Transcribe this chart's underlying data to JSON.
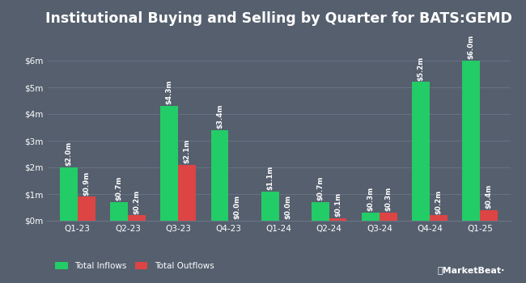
{
  "title": "Institutional Buying and Selling by Quarter for BATS:GEMD",
  "quarters": [
    "Q1-23",
    "Q2-23",
    "Q3-23",
    "Q4-23",
    "Q1-24",
    "Q2-24",
    "Q3-24",
    "Q4-24",
    "Q1-25"
  ],
  "inflows": [
    2.0,
    0.7,
    4.3,
    3.4,
    1.1,
    0.7,
    0.3,
    5.2,
    6.0
  ],
  "outflows": [
    0.9,
    0.2,
    2.1,
    0.0,
    0.0,
    0.1,
    0.3,
    0.2,
    0.4
  ],
  "inflow_labels": [
    "$2.0m",
    "$0.7m",
    "$4.3m",
    "$3.4m",
    "$1.1m",
    "$0.7m",
    "$0.3m",
    "$5.2m",
    "$6.0m"
  ],
  "outflow_labels": [
    "$0.9m",
    "$0.2m",
    "$2.1m",
    "$0.0m",
    "$0.0m",
    "$0.1m",
    "$0.3m",
    "$0.2m",
    "$0.4m"
  ],
  "inflow_color": "#22cc66",
  "outflow_color": "#dd4444",
  "bg_color": "#555f6e",
  "text_color": "#ffffff",
  "grid_color": "#6a7588",
  "title_fontsize": 12.5,
  "label_fontsize": 6.2,
  "tick_fontsize": 7.5,
  "legend_fontsize": 7.5,
  "bar_width": 0.35,
  "ylim": [
    0,
    7
  ],
  "yticks": [
    0,
    1,
    2,
    3,
    4,
    5,
    6
  ],
  "ytick_labels": [
    "$0m",
    "$1m",
    "$2m",
    "$3m",
    "$4m",
    "$5m",
    "$6m"
  ]
}
